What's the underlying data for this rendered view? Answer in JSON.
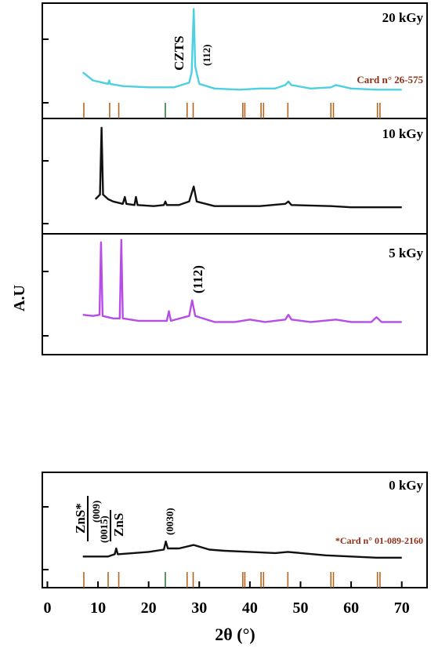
{
  "figure": {
    "y_axis_label": "A.U",
    "x_axis_label": "2θ (°)",
    "x_ticks": [
      "0",
      "10",
      "20",
      "30",
      "40",
      "50",
      "60",
      "70"
    ]
  },
  "chart_data": [
    {
      "type": "line",
      "panel": "20 kGy",
      "dose_label": "20 kGy",
      "series_color": "#4dd0e1",
      "xlim": [
        -1,
        75
      ],
      "annotations": [
        "CZTS",
        "(112)",
        "Card n° 26-575"
      ],
      "series": [
        {
          "values": [
            [
              7,
              0.4
            ],
            [
              9,
              0.33
            ],
            [
              12,
              0.3
            ],
            [
              12.2,
              0.33
            ],
            [
              12.4,
              0.3
            ],
            [
              15,
              0.28
            ],
            [
              20,
              0.27
            ],
            [
              25,
              0.27
            ],
            [
              28,
              0.31
            ],
            [
              28.5,
              0.4
            ],
            [
              28.9,
              0.95
            ],
            [
              29.2,
              0.45
            ],
            [
              30,
              0.3
            ],
            [
              33,
              0.26
            ],
            [
              38,
              0.25
            ],
            [
              42,
              0.26
            ],
            [
              45,
              0.26
            ],
            [
              47,
              0.29
            ],
            [
              47.6,
              0.32
            ],
            [
              48.2,
              0.29
            ],
            [
              52,
              0.26
            ],
            [
              56,
              0.27
            ],
            [
              57,
              0.29
            ],
            [
              60,
              0.26
            ],
            [
              65,
              0.25
            ],
            [
              70,
              0.25
            ]
          ]
        }
      ],
      "reference_peaks": [
        7.2,
        12.3,
        14.1,
        23.3,
        27.6,
        28.8,
        38.6,
        39.0,
        42.2,
        42.7,
        47.5,
        56.0,
        56.5,
        65.2,
        65.7
      ]
    },
    {
      "type": "line",
      "panel": "10 kGy",
      "dose_label": "10 kGy",
      "series_color": "#111111",
      "xlim": [
        -1,
        75
      ],
      "series": [
        {
          "values": [
            [
              9.5,
              0.3
            ],
            [
              10.4,
              0.34
            ],
            [
              10.7,
              0.92
            ],
            [
              11.0,
              0.34
            ],
            [
              12,
              0.3
            ],
            [
              13,
              0.28
            ],
            [
              14.9,
              0.26
            ],
            [
              15.3,
              0.32
            ],
            [
              15.6,
              0.26
            ],
            [
              17.2,
              0.25
            ],
            [
              17.5,
              0.32
            ],
            [
              17.8,
              0.25
            ],
            [
              21,
              0.24
            ],
            [
              23,
              0.25
            ],
            [
              23.3,
              0.28
            ],
            [
              23.6,
              0.25
            ],
            [
              26,
              0.25
            ],
            [
              28,
              0.28
            ],
            [
              28.9,
              0.41
            ],
            [
              29.5,
              0.28
            ],
            [
              33,
              0.24
            ],
            [
              38,
              0.24
            ],
            [
              42,
              0.24
            ],
            [
              47,
              0.26
            ],
            [
              47.6,
              0.28
            ],
            [
              48.2,
              0.25
            ],
            [
              56,
              0.24
            ],
            [
              60,
              0.23
            ],
            [
              65,
              0.23
            ],
            [
              70,
              0.23
            ]
          ]
        }
      ]
    },
    {
      "type": "line",
      "panel": "5 kGy",
      "dose_label": "5 kGy",
      "series_color": "#b84ce8",
      "xlim": [
        -1,
        75
      ],
      "annotations": [
        "(112)"
      ],
      "series": [
        {
          "values": [
            [
              7,
              0.33
            ],
            [
              9,
              0.32
            ],
            [
              10.3,
              0.33
            ],
            [
              10.6,
              0.93
            ],
            [
              10.9,
              0.32
            ],
            [
              13,
              0.3
            ],
            [
              14.3,
              0.3
            ],
            [
              14.6,
              0.95
            ],
            [
              14.9,
              0.3
            ],
            [
              18,
              0.28
            ],
            [
              23.6,
              0.28
            ],
            [
              24,
              0.36
            ],
            [
              24.4,
              0.28
            ],
            [
              28,
              0.32
            ],
            [
              28.6,
              0.45
            ],
            [
              29.2,
              0.32
            ],
            [
              33,
              0.27
            ],
            [
              37,
              0.27
            ],
            [
              40,
              0.29
            ],
            [
              43,
              0.27
            ],
            [
              47,
              0.29
            ],
            [
              47.6,
              0.33
            ],
            [
              48.2,
              0.29
            ],
            [
              52,
              0.27
            ],
            [
              57,
              0.29
            ],
            [
              60,
              0.27
            ],
            [
              64,
              0.27
            ],
            [
              65,
              0.31
            ],
            [
              66,
              0.27
            ],
            [
              70,
              0.27
            ]
          ]
        }
      ]
    },
    {
      "type": "line",
      "panel": "0 kGy",
      "dose_label": "0 kGy",
      "series_color": "#111111",
      "xlim": [
        -1,
        75
      ],
      "xlabel": "2θ (°)",
      "annotations": [
        "ZnS*",
        "(009)",
        "(0015)",
        "ZnS",
        "(0030)",
        "*Card n° 01-089-2160"
      ],
      "series": [
        {
          "values": [
            [
              7,
              0.27
            ],
            [
              10,
              0.27
            ],
            [
              12,
              0.27
            ],
            [
              13.3,
              0.29
            ],
            [
              13.6,
              0.34
            ],
            [
              13.9,
              0.29
            ],
            [
              17,
              0.3
            ],
            [
              20,
              0.31
            ],
            [
              23,
              0.33
            ],
            [
              23.4,
              0.4
            ],
            [
              23.8,
              0.34
            ],
            [
              26,
              0.34
            ],
            [
              28.9,
              0.37
            ],
            [
              32,
              0.33
            ],
            [
              35,
              0.32
            ],
            [
              40,
              0.31
            ],
            [
              45,
              0.3
            ],
            [
              47.5,
              0.31
            ],
            [
              50,
              0.3
            ],
            [
              55,
              0.28
            ],
            [
              60,
              0.27
            ],
            [
              65,
              0.26
            ],
            [
              70,
              0.26
            ]
          ]
        }
      ],
      "reference_peaks": [
        7.2,
        12.0,
        14.1,
        23.3,
        27.6,
        28.8,
        38.6,
        39.0,
        42.2,
        42.7,
        47.5,
        56.0,
        56.5,
        65.2,
        65.7
      ]
    }
  ]
}
